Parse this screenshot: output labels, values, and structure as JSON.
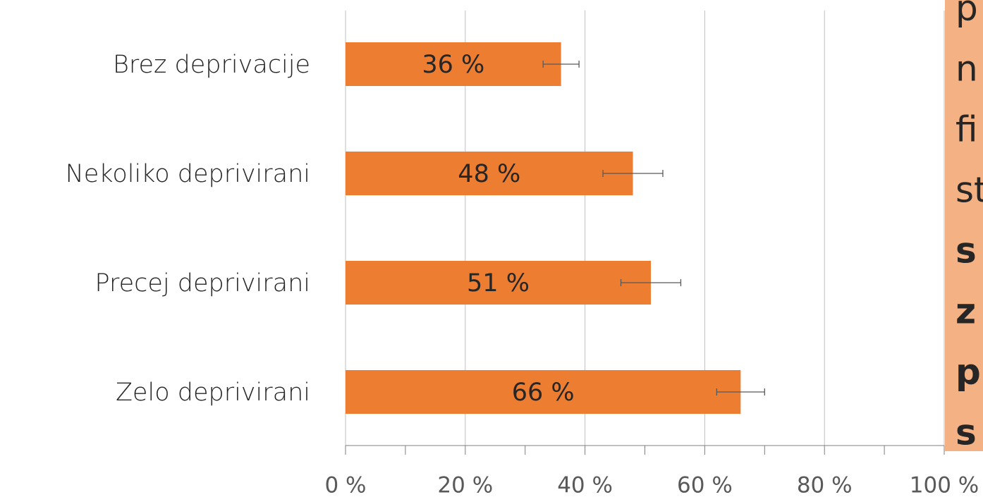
{
  "chart_data": {
    "type": "hbar",
    "categories": [
      "Brez deprivacije",
      "Nekoliko deprivirani",
      "Precej deprivirani",
      "Zelo deprivirani"
    ],
    "values": [
      36,
      48,
      51,
      66
    ],
    "value_labels": [
      "36 %",
      "48 %",
      "51 %",
      "66 %"
    ],
    "errors": [
      3,
      5,
      5,
      4
    ],
    "color": "#ed7d31",
    "xlim": [
      0,
      100
    ],
    "xticks": [
      {
        "value": 0,
        "label": "0 %"
      },
      {
        "value": 20,
        "label": "20 %"
      },
      {
        "value": 40,
        "label": "40 %"
      },
      {
        "value": 60,
        "label": "60 %"
      },
      {
        "value": 80,
        "label": "80 %"
      },
      {
        "value": 100,
        "label": "100 %"
      }
    ],
    "minor_xticks": [
      10,
      30,
      50,
      70,
      90
    ],
    "grid": true
  },
  "side_note": {
    "lines": [
      {
        "text": "p",
        "bold": false
      },
      {
        "text": "n",
        "bold": false
      },
      {
        "text": "fi",
        "bold": false
      },
      {
        "text": "st",
        "bold": false
      },
      {
        "text": "s",
        "bold": true
      },
      {
        "text": "z",
        "bold": true
      },
      {
        "text": "p",
        "bold": true
      },
      {
        "text": "s",
        "bold": true
      }
    ]
  }
}
